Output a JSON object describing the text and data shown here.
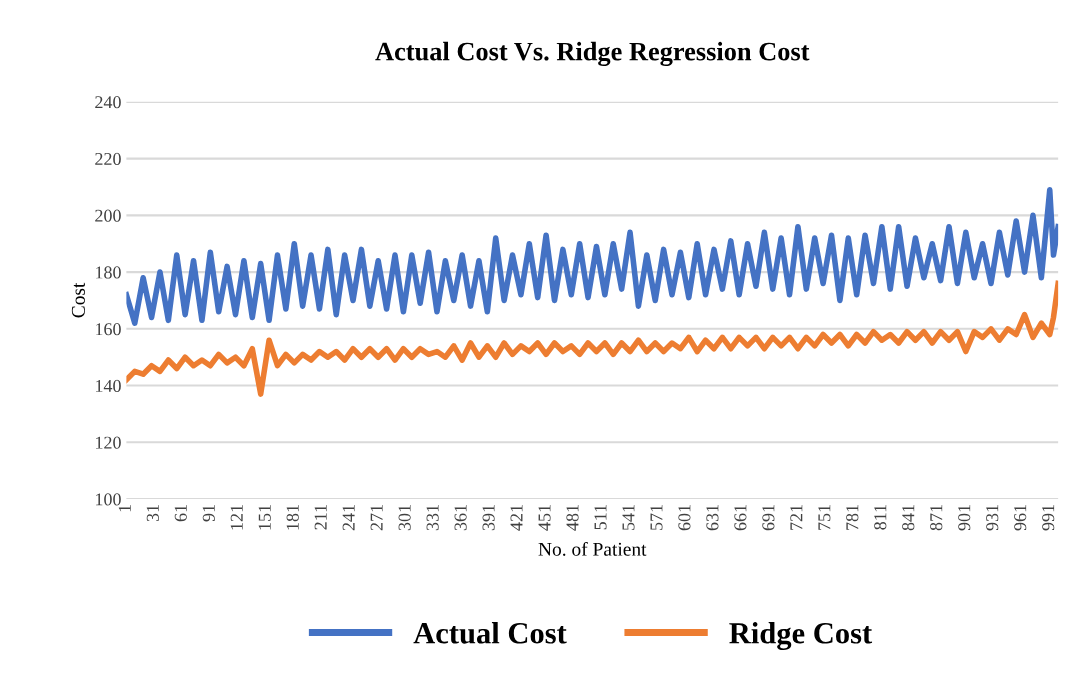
{
  "chart_data": {
    "type": "line",
    "title": "Actual Cost Vs. Ridge Regression Cost",
    "xlabel": "No. of Patient",
    "ylabel": "Cost",
    "xlim": [
      1,
      1000
    ],
    "xticks": [
      1,
      31,
      61,
      91,
      121,
      151,
      181,
      211,
      241,
      271,
      301,
      331,
      361,
      391,
      421,
      451,
      481,
      511,
      541,
      571,
      601,
      631,
      661,
      691,
      721,
      751,
      781,
      811,
      841,
      871,
      901,
      931,
      961,
      991
    ],
    "ylim": [
      100,
      240
    ],
    "yticks": [
      100,
      120,
      140,
      160,
      180,
      200,
      220,
      240
    ],
    "grid": "y",
    "legend": "bottom",
    "marker": "none",
    "line_style": "solid",
    "series": [
      {
        "name": "Actual Cost",
        "color": "#4472c4",
        "x": [
          1,
          10,
          19,
          28,
          37,
          46,
          55,
          64,
          73,
          82,
          91,
          100,
          109,
          118,
          127,
          136,
          145,
          154,
          163,
          172,
          181,
          190,
          199,
          208,
          217,
          226,
          235,
          244,
          253,
          262,
          271,
          280,
          289,
          298,
          307,
          316,
          325,
          334,
          343,
          352,
          361,
          370,
          379,
          388,
          397,
          406,
          415,
          424,
          433,
          442,
          451,
          460,
          469,
          478,
          487,
          496,
          505,
          514,
          523,
          532,
          541,
          550,
          559,
          568,
          577,
          586,
          595,
          604,
          613,
          622,
          631,
          640,
          649,
          658,
          667,
          676,
          685,
          694,
          703,
          712,
          721,
          730,
          739,
          748,
          757,
          766,
          775,
          784,
          793,
          802,
          811,
          820,
          829,
          838,
          847,
          856,
          865,
          874,
          883,
          892,
          901,
          910,
          919,
          928,
          937,
          946,
          955,
          964,
          973,
          982,
          991,
          995,
          1000
        ],
        "values": [
          172,
          162,
          178,
          164,
          180,
          163,
          186,
          165,
          184,
          163,
          187,
          166,
          182,
          165,
          184,
          164,
          183,
          163,
          186,
          167,
          190,
          168,
          186,
          167,
          188,
          165,
          186,
          170,
          188,
          168,
          184,
          167,
          186,
          166,
          186,
          169,
          187,
          166,
          184,
          170,
          186,
          168,
          184,
          166,
          192,
          170,
          186,
          172,
          190,
          171,
          193,
          170,
          188,
          172,
          190,
          171,
          189,
          172,
          190,
          174,
          194,
          168,
          186,
          170,
          188,
          172,
          187,
          171,
          190,
          172,
          188,
          174,
          191,
          172,
          190,
          175,
          194,
          174,
          192,
          172,
          196,
          174,
          192,
          176,
          193,
          170,
          192,
          172,
          193,
          176,
          196,
          174,
          196,
          175,
          192,
          178,
          190,
          177,
          196,
          176,
          194,
          178,
          190,
          176,
          194,
          179,
          198,
          180,
          200,
          178,
          209,
          186,
          196
        ]
      },
      {
        "name": "Ridge Cost",
        "color": "#ed7d31",
        "x": [
          1,
          10,
          19,
          28,
          37,
          46,
          55,
          64,
          73,
          82,
          91,
          100,
          109,
          118,
          127,
          136,
          145,
          154,
          163,
          172,
          181,
          190,
          199,
          208,
          217,
          226,
          235,
          244,
          253,
          262,
          271,
          280,
          289,
          298,
          307,
          316,
          325,
          334,
          343,
          352,
          361,
          370,
          379,
          388,
          397,
          406,
          415,
          424,
          433,
          442,
          451,
          460,
          469,
          478,
          487,
          496,
          505,
          514,
          523,
          532,
          541,
          550,
          559,
          568,
          577,
          586,
          595,
          604,
          613,
          622,
          631,
          640,
          649,
          658,
          667,
          676,
          685,
          694,
          703,
          712,
          721,
          730,
          739,
          748,
          757,
          766,
          775,
          784,
          793,
          802,
          811,
          820,
          829,
          838,
          847,
          856,
          865,
          874,
          883,
          892,
          901,
          910,
          919,
          928,
          937,
          946,
          955,
          964,
          973,
          982,
          991,
          995,
          1000
        ],
        "values": [
          142,
          145,
          144,
          147,
          145,
          149,
          146,
          150,
          147,
          149,
          147,
          151,
          148,
          150,
          147,
          153,
          137,
          156,
          147,
          151,
          148,
          151,
          149,
          152,
          150,
          152,
          149,
          153,
          150,
          153,
          150,
          153,
          149,
          153,
          150,
          153,
          151,
          152,
          150,
          154,
          149,
          155,
          150,
          154,
          150,
          155,
          151,
          154,
          152,
          155,
          151,
          155,
          152,
          154,
          151,
          155,
          152,
          155,
          151,
          155,
          152,
          156,
          152,
          155,
          152,
          155,
          153,
          157,
          152,
          156,
          153,
          157,
          153,
          157,
          154,
          157,
          153,
          157,
          154,
          157,
          153,
          157,
          154,
          158,
          155,
          158,
          154,
          158,
          155,
          159,
          156,
          158,
          155,
          159,
          156,
          159,
          155,
          159,
          156,
          159,
          152,
          159,
          157,
          160,
          156,
          160,
          158,
          165,
          157,
          162,
          158,
          164,
          176
        ]
      }
    ]
  }
}
